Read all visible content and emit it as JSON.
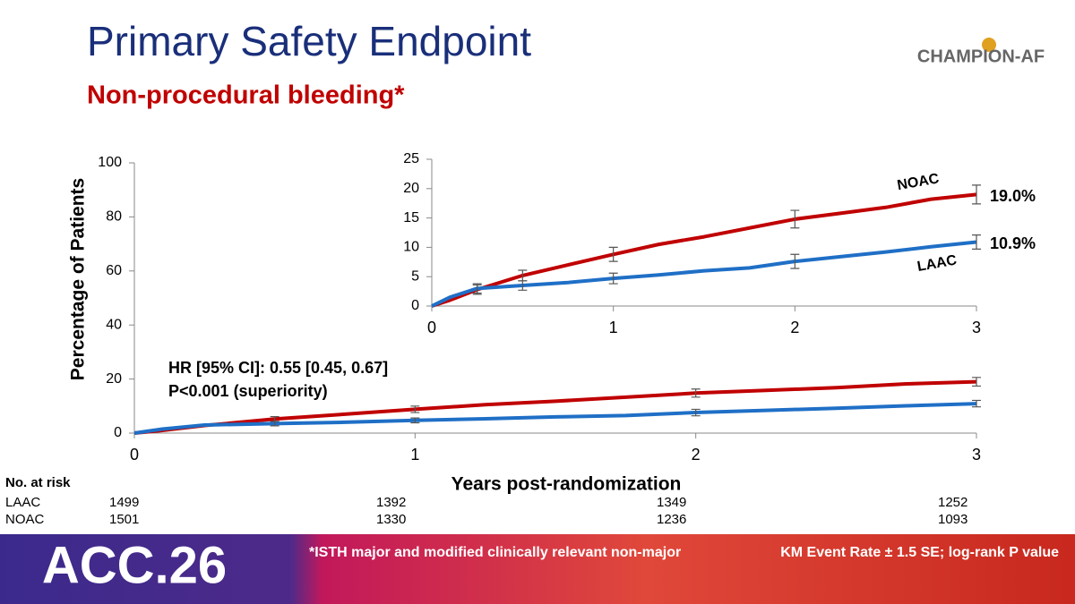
{
  "header": {
    "title": "Primary Safety Endpoint",
    "subtitle": "Non-procedural bleeding*",
    "logo": "CHAMPION-AF"
  },
  "chart_data": [
    {
      "type": "line",
      "ylabel": "Percentage of Patients",
      "xlabel": "Years post-randomization",
      "annotations": [
        "HR [95% CI]: 0.55 [0.45, 0.67]",
        "P<0.001 (superiority)"
      ],
      "x": [
        0,
        0.1,
        0.25,
        0.5,
        0.75,
        1,
        1.25,
        1.5,
        1.75,
        2,
        2.25,
        2.5,
        2.75,
        3
      ],
      "xlim": [
        0,
        3
      ],
      "xticks": [
        0,
        1,
        2,
        3
      ],
      "ylim": [
        0,
        100
      ],
      "yticks": [
        0,
        20,
        40,
        60,
        80,
        100
      ],
      "series": [
        {
          "name": "NOAC",
          "color": "#c00000",
          "values": [
            0,
            1,
            2.8,
            5.2,
            7,
            8.8,
            10.5,
            11.8,
            13.3,
            14.8,
            15.8,
            16.8,
            18.2,
            19.0
          ],
          "errors": [
            null,
            null,
            null,
            0.9,
            null,
            1.2,
            null,
            null,
            null,
            1.5,
            null,
            null,
            null,
            1.6
          ]
        },
        {
          "name": "LAAC",
          "color": "#1f6fc6",
          "values": [
            0,
            1.5,
            3,
            3.5,
            4,
            4.7,
            5.3,
            6,
            6.5,
            7.6,
            8.4,
            9.2,
            10.1,
            10.9
          ],
          "errors": [
            null,
            null,
            null,
            0.8,
            null,
            0.9,
            null,
            null,
            null,
            1.2,
            null,
            null,
            null,
            1.2
          ]
        }
      ]
    },
    {
      "type": "line",
      "x": [
        0,
        0.1,
        0.25,
        0.5,
        0.75,
        1,
        1.25,
        1.5,
        1.75,
        2,
        2.25,
        2.5,
        2.75,
        3
      ],
      "xlim": [
        0,
        3
      ],
      "xticks": [
        0,
        1,
        2,
        3
      ],
      "ylim": [
        0,
        25
      ],
      "yticks": [
        0,
        5,
        10,
        15,
        20,
        25
      ],
      "series": [
        {
          "name": "NOAC",
          "color": "#c00000",
          "values": [
            0,
            1,
            2.8,
            5.2,
            7,
            8.8,
            10.5,
            11.8,
            13.3,
            14.8,
            15.8,
            16.8,
            18.2,
            19.0
          ],
          "errors": [
            null,
            null,
            0.8,
            0.9,
            null,
            1.2,
            null,
            null,
            null,
            1.5,
            null,
            null,
            null,
            1.6
          ],
          "value_labels": [
            null,
            null,
            null,
            null,
            null,
            null,
            null,
            null,
            null,
            null,
            null,
            null,
            null,
            "19.0%"
          ]
        },
        {
          "name": "LAAC",
          "color": "#1f6fc6",
          "values": [
            0,
            1.5,
            3,
            3.5,
            4,
            4.7,
            5.3,
            6,
            6.5,
            7.6,
            8.4,
            9.2,
            10.1,
            10.9
          ],
          "errors": [
            null,
            null,
            0.8,
            0.8,
            null,
            0.9,
            null,
            null,
            null,
            1.2,
            null,
            null,
            null,
            1.2
          ],
          "value_labels": [
            null,
            null,
            null,
            null,
            null,
            null,
            null,
            null,
            null,
            null,
            null,
            null,
            null,
            "10.9%"
          ]
        }
      ]
    }
  ],
  "risk_table": {
    "title": "No. at risk",
    "rows": [
      {
        "name": "LAAC",
        "values": [
          1499,
          1392,
          1349,
          1252
        ]
      },
      {
        "name": "NOAC",
        "values": [
          1501,
          1330,
          1236,
          1093
        ]
      }
    ]
  },
  "footer": {
    "brand": "ACC.26",
    "note": "*ISTH major and modified clinically relevant non-major",
    "method": "KM Event Rate ± 1.5 SE; log-rank P value"
  }
}
